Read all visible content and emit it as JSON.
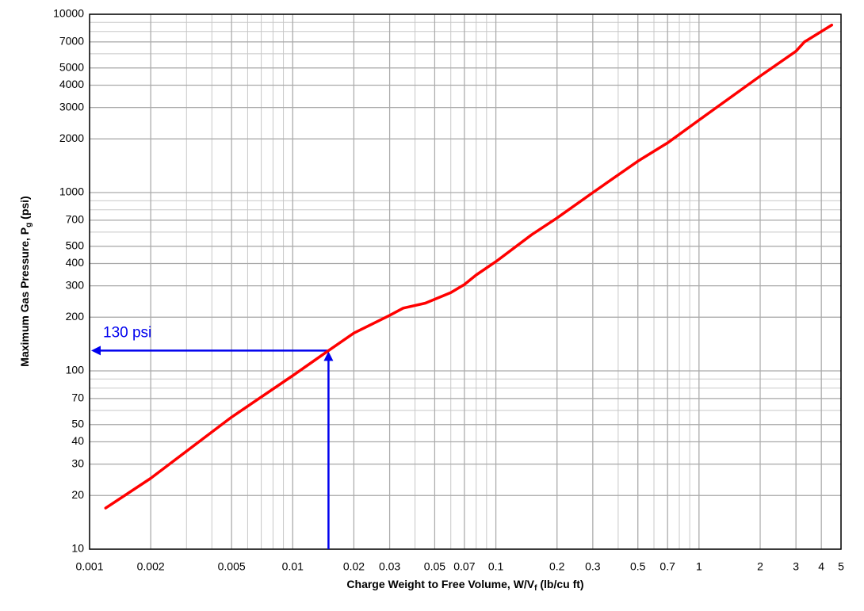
{
  "chart_data": {
    "type": "line",
    "x_label": {
      "text": "Charge Weight to Free Volume, W/V",
      "sub": "f",
      "after": " (lb/cu ft)"
    },
    "y_label": {
      "text": "Maximum Gas Pressure, P",
      "sub": "g",
      "after": " (psi)"
    },
    "x": [
      0.0012,
      0.002,
      0.005,
      0.01,
      0.015,
      0.02,
      0.03,
      0.035,
      0.045,
      0.06,
      0.07,
      0.08,
      0.1,
      0.15,
      0.2,
      0.3,
      0.5,
      0.7,
      1,
      2,
      3,
      3.3,
      4.5
    ],
    "values": [
      17,
      25,
      55,
      94,
      130,
      163,
      205,
      225,
      240,
      275,
      305,
      345,
      410,
      580,
      720,
      1000,
      1500,
      1900,
      2550,
      4500,
      6200,
      7000,
      8700
    ],
    "color": "#ff0000",
    "log_x": true,
    "log_y": true,
    "xlim": [
      0.001,
      5
    ],
    "ylim": [
      10,
      10000
    ],
    "xticks": [
      0.001,
      0.002,
      0.005,
      0.01,
      0.02,
      0.03,
      0.05,
      0.07,
      0.1,
      0.2,
      0.3,
      0.5,
      0.7,
      1,
      2,
      3,
      4,
      5
    ],
    "yticks": [
      10,
      20,
      30,
      40,
      50,
      70,
      100,
      200,
      300,
      400,
      500,
      700,
      1000,
      2000,
      3000,
      4000,
      5000,
      7000,
      10000
    ],
    "grid": true,
    "minor_grid": true,
    "annotation": {
      "text": "130 psi",
      "x": 0.015,
      "y": 130,
      "color": "#0000ee"
    }
  }
}
